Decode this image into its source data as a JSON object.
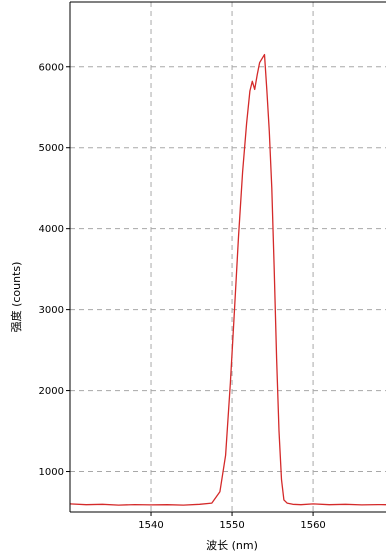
{
  "chart_data": {
    "type": "line",
    "xlabel": "波长 (nm)",
    "ylabel": "强度 (counts)",
    "xlim": [
      1530,
      1569
    ],
    "ylim": [
      500,
      6800
    ],
    "x_ticks": [
      "1540",
      "1550",
      "1560"
    ],
    "y_ticks": [
      "1000",
      "2000",
      "3000",
      "4000",
      "5000",
      "6000"
    ],
    "grid": true,
    "colors": {
      "series": "#d42a2a",
      "grid": "#a8a8a8",
      "frame": "#000000"
    },
    "series": [
      {
        "x": [
          1530,
          1532,
          1534,
          1536,
          1538,
          1540,
          1542,
          1544,
          1546,
          1547.5,
          1548.5,
          1549.2,
          1549.8,
          1550.3,
          1550.8,
          1551.3,
          1551.8,
          1552.2,
          1552.5,
          1552.8,
          1553.1,
          1553.4,
          1553.7,
          1554.0,
          1554.3,
          1554.6,
          1554.9,
          1555.2,
          1555.5,
          1555.8,
          1556.1,
          1556.4,
          1556.8,
          1557.5,
          1558.5,
          1560,
          1562,
          1564,
          1566,
          1568,
          1569
        ],
        "values": [
          600,
          590,
          595,
          585,
          592,
          588,
          590,
          585,
          595,
          610,
          750,
          1200,
          2100,
          3000,
          3900,
          4700,
          5300,
          5700,
          5820,
          5720,
          5900,
          6050,
          6100,
          6150,
          5700,
          5200,
          4500,
          3500,
          2400,
          1500,
          900,
          650,
          610,
          595,
          590,
          600,
          590,
          595,
          588,
          592,
          590
        ]
      }
    ]
  }
}
